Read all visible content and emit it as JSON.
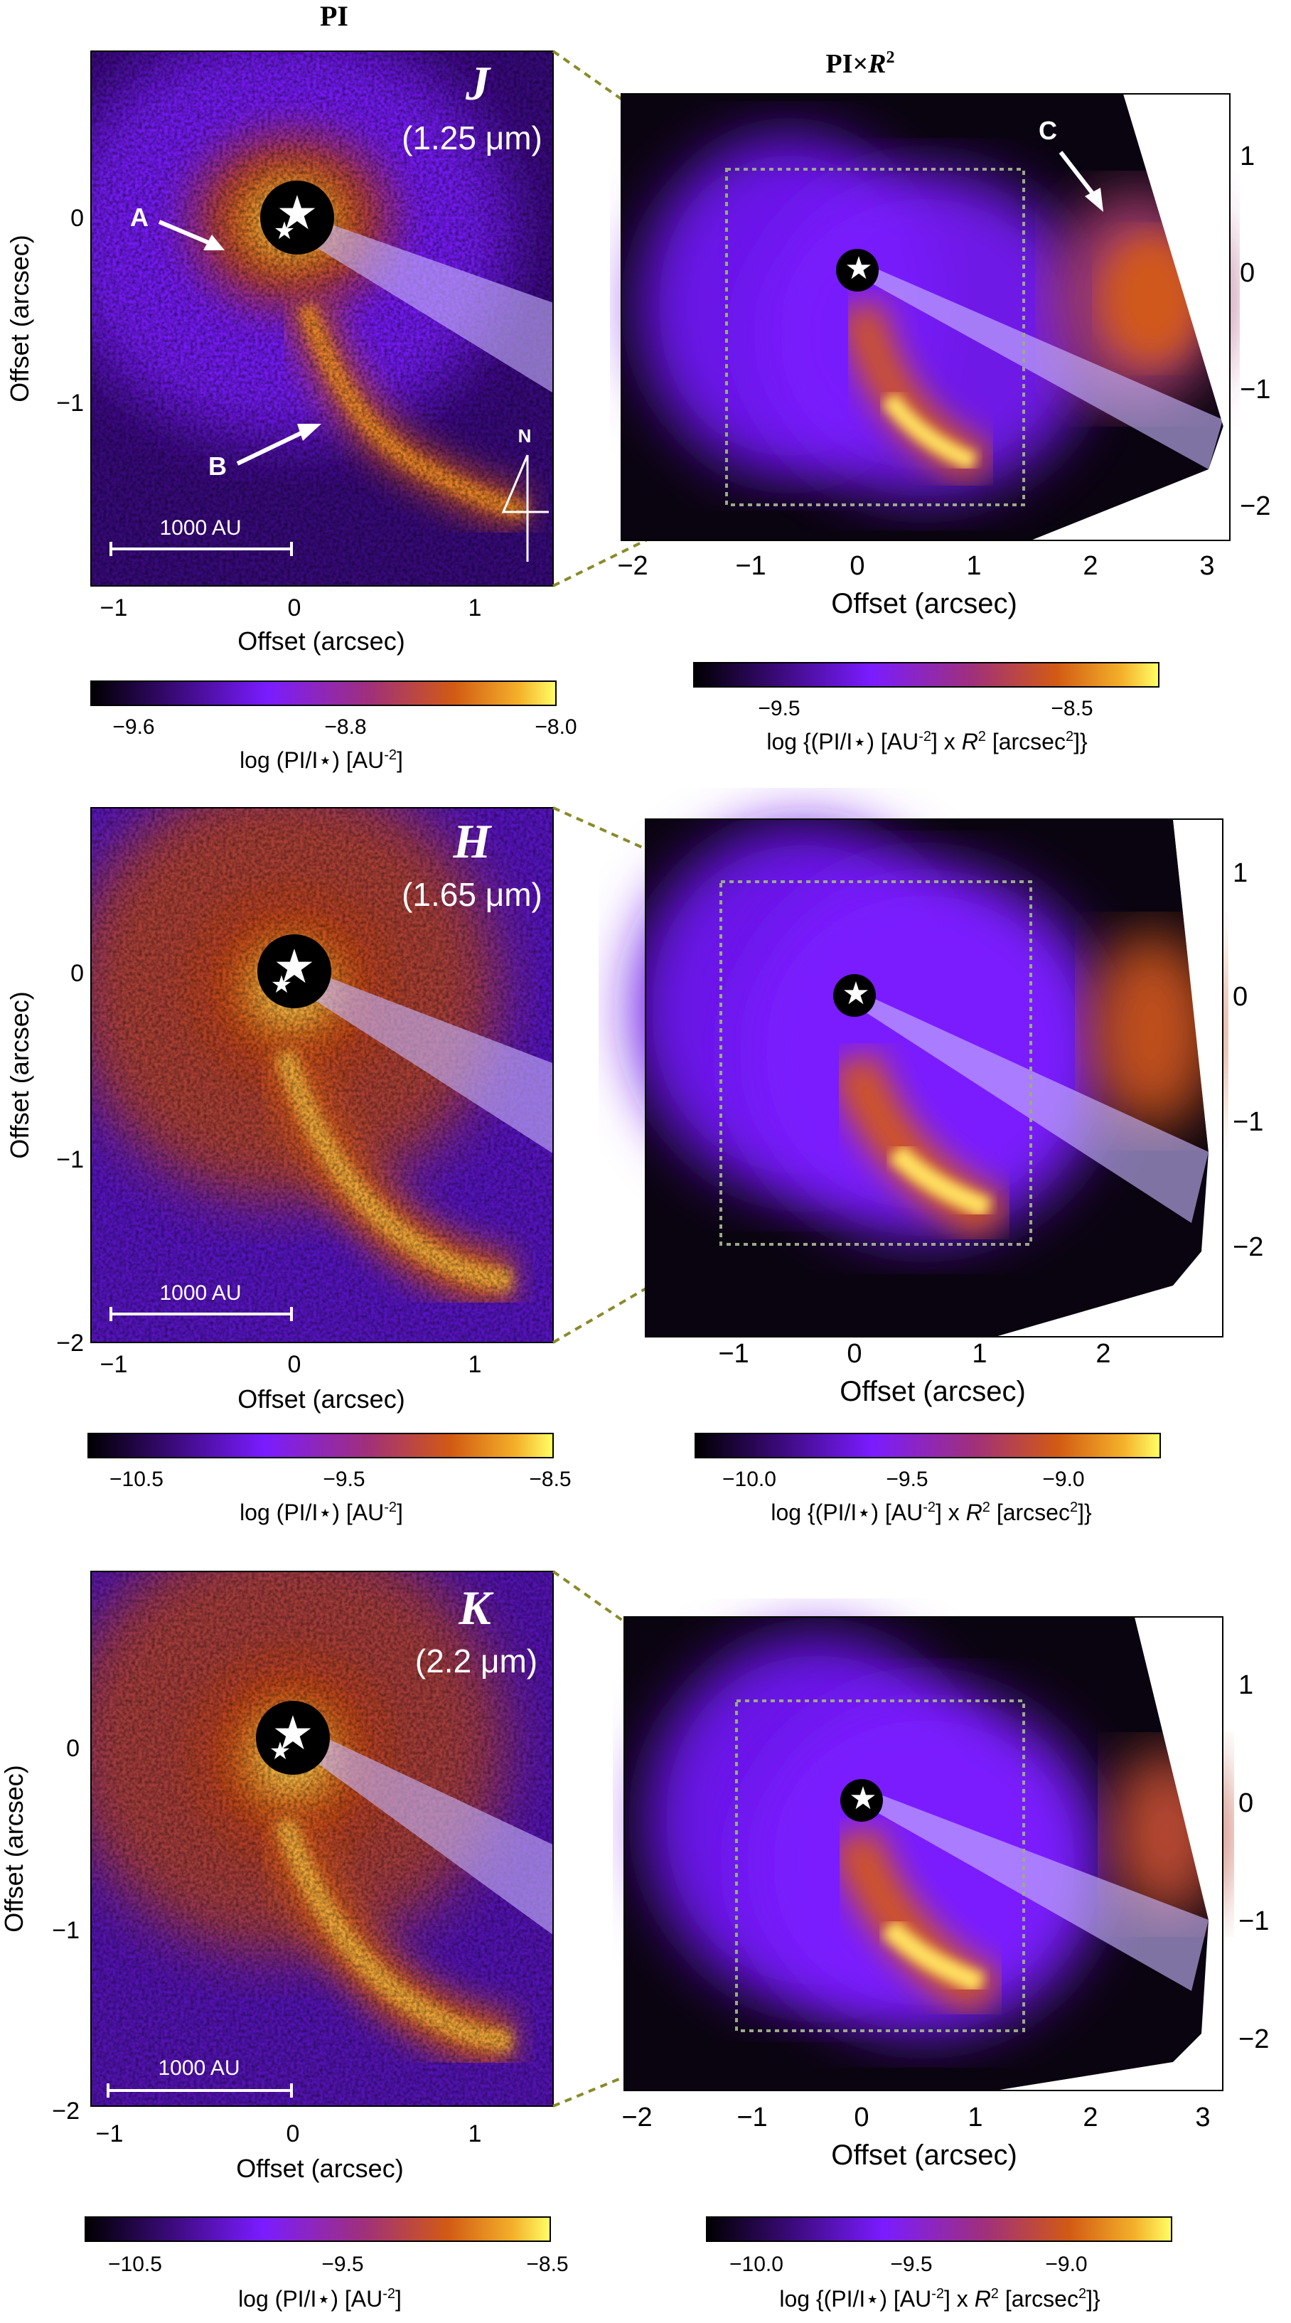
{
  "figure": {
    "column_titles": {
      "left": "PI",
      "right_prefix": "PI×",
      "right_var": "R",
      "right_sup": "2"
    },
    "panels": [
      {
        "band": "J",
        "wavelength": "(1.25 μm)",
        "left": {
          "xticks": [
            "−1",
            "0",
            "1"
          ],
          "yticks": [
            "0",
            "−1"
          ],
          "xlabel": "Offset (arcsec)",
          "ylabel": "Offset (arcsec)",
          "scalebar": "1000 AU",
          "annotations": {
            "A": "A",
            "B": "B"
          },
          "north": "N"
        },
        "right": {
          "xticks": [
            "−2",
            "−1",
            "0",
            "1",
            "2",
            "3"
          ],
          "yticks": [
            "1",
            "0",
            "−1",
            "−2"
          ],
          "xlabel": "Offset (arcsec)",
          "annotation_C": "C"
        },
        "colorbar_left": {
          "ticks": [
            "−9.6",
            "−8.8",
            "−8.0"
          ],
          "label": "log (PI/I⋆) [AU",
          "label_sup": "-2",
          "label_end": "]"
        },
        "colorbar_right": {
          "ticks": [
            "−9.5",
            "−8.5"
          ],
          "label_a": "log {(PI/I⋆) [AU",
          "label_sup1": "-2",
          "label_b": "] x ",
          "label_var": "R",
          "label_sup2": "2",
          "label_c": " [arcsec",
          "label_sup3": "2",
          "label_d": "]}"
        }
      },
      {
        "band": "H",
        "wavelength": "(1.65 μm)",
        "left": {
          "xticks": [
            "−1",
            "0",
            "1"
          ],
          "yticks": [
            "0",
            "−1",
            "−2"
          ],
          "xlabel": "Offset (arcsec)",
          "ylabel": "Offset (arcsec)",
          "scalebar": "1000 AU"
        },
        "right": {
          "xticks": [
            "−1",
            "0",
            "1",
            "2"
          ],
          "yticks": [
            "1",
            "0",
            "−1",
            "−2"
          ],
          "xlabel": "Offset (arcsec)"
        },
        "colorbar_left": {
          "ticks": [
            "−10.5",
            "−9.5",
            "−8.5"
          ],
          "label": "log (PI/I⋆) [AU",
          "label_sup": "-2",
          "label_end": "]"
        },
        "colorbar_right": {
          "ticks": [
            "−10.0",
            "−9.5",
            "−9.0"
          ],
          "label_a": "log {(PI/I⋆) [AU",
          "label_sup1": "-2",
          "label_b": "] x ",
          "label_var": "R",
          "label_sup2": "2",
          "label_c": " [arcsec",
          "label_sup3": "2",
          "label_d": "]}"
        }
      },
      {
        "band": "K",
        "wavelength": "(2.2 μm)",
        "left": {
          "xticks": [
            "−1",
            "0",
            "1"
          ],
          "yticks": [
            "0",
            "−1",
            "−2"
          ],
          "xlabel": "Offset (arcsec)",
          "ylabel": "Offset (arcsec)",
          "scalebar": "1000 AU"
        },
        "right": {
          "xticks": [
            "−2",
            "−1",
            "0",
            "1",
            "2",
            "3"
          ],
          "yticks": [
            "1",
            "0",
            "−1",
            "−2"
          ],
          "xlabel": "Offset (arcsec)"
        },
        "colorbar_left": {
          "ticks": [
            "−10.5",
            "−9.5",
            "−8.5"
          ],
          "label": "log (PI/I⋆) [AU",
          "label_sup": "-2",
          "label_end": "]"
        },
        "colorbar_right": {
          "ticks": [
            "−10.0",
            "−9.5",
            "−9.0"
          ],
          "label_a": "log {(PI/I⋆) [AU",
          "label_sup1": "-2",
          "label_b": "] x ",
          "label_var": "R",
          "label_sup2": "2",
          "label_c": " [arcsec",
          "label_sup3": "2",
          "label_d": "]}"
        }
      }
    ],
    "colors": {
      "background_dark": "#0a0410",
      "purple": "#7a1cff",
      "violet": "#5a10c8",
      "orange": "#c8460c",
      "yellow": "#ffee66",
      "connector": "#8a8a2a",
      "box": "#9aaa88"
    }
  }
}
